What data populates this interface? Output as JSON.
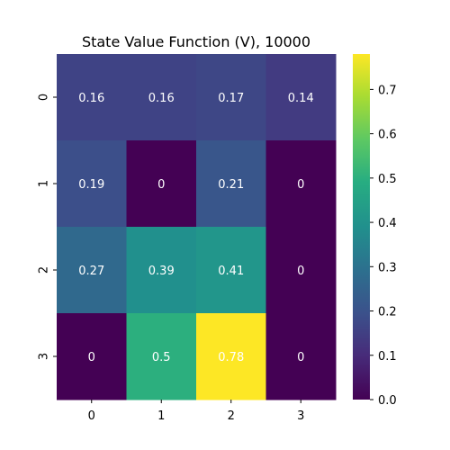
{
  "chart_data": {
    "type": "heatmap",
    "title": "State Value Function (V), 10000",
    "x_categories": [
      "0",
      "1",
      "2",
      "3"
    ],
    "y_categories": [
      "0",
      "1",
      "2",
      "3"
    ],
    "values": [
      [
        0.16,
        0.16,
        0.17,
        0.14
      ],
      [
        0.19,
        0,
        0.21,
        0
      ],
      [
        0.27,
        0.39,
        0.41,
        0
      ],
      [
        0,
        0.5,
        0.78,
        0
      ]
    ],
    "cell_labels": [
      [
        "0.16",
        "0.16",
        "0.17",
        "0.14"
      ],
      [
        "0.19",
        "0",
        "0.21",
        "0"
      ],
      [
        "0.27",
        "0.39",
        "0.41",
        "0"
      ],
      [
        "0",
        "0.5",
        "0.78",
        "0"
      ]
    ],
    "colormap": "viridis",
    "vmin": 0,
    "vmax": 0.78,
    "colorbar": {
      "ticks": [
        0.0,
        0.1,
        0.2,
        0.3,
        0.4,
        0.5,
        0.6,
        0.7
      ],
      "tick_labels": [
        "0.0",
        "0.1",
        "0.2",
        "0.3",
        "0.4",
        "0.5",
        "0.6",
        "0.7"
      ]
    },
    "annotation_color": "#ffffff"
  }
}
